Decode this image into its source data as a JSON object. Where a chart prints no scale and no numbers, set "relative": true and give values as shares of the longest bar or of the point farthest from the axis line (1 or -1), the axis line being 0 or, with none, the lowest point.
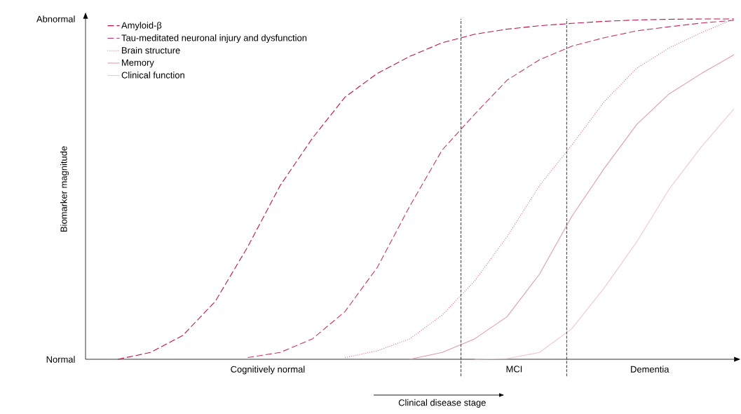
{
  "chart_data": {
    "type": "line",
    "relative": true,
    "xlabel": "Clinical disease stage",
    "ylabel": "Biomarker magnitude",
    "categories": [
      null,
      null,
      null,
      null,
      null,
      null,
      null,
      null,
      null,
      null,
      null,
      null,
      null,
      null,
      null,
      null,
      null,
      null,
      null,
      null,
      null
    ],
    "annotations": [
      "Normal",
      "Abnormal",
      "Cognitively normal",
      "MCI",
      "Dementia"
    ],
    "legend": "top left",
    "marker": "none",
    "series": [
      {
        "name": "Amyloid-β",
        "color": "#c0124f",
        "line_style": "dashed",
        "values": [
          null,
          0,
          0.02,
          0.07,
          0.17,
          0.33,
          0.51,
          0.65,
          0.77,
          0.84,
          0.89,
          0.93,
          0.955,
          0.97,
          0.98,
          0.987,
          0.993,
          0.997,
          0.999,
          1.0,
          1.0
        ]
      },
      {
        "name": "Tau-meditated neuronal injury and dysfunction",
        "color": "#c8336a",
        "line_style": "dashed",
        "values": [
          null,
          null,
          null,
          null,
          null,
          0.005,
          0.02,
          0.06,
          0.14,
          0.27,
          0.45,
          0.615,
          0.72,
          0.82,
          0.88,
          0.92,
          0.945,
          0.965,
          0.977,
          0.988,
          0.996
        ]
      },
      {
        "name": "Brain structure",
        "color": "#d0628a",
        "line_style": "dotted",
        "values": [
          null,
          null,
          null,
          null,
          null,
          null,
          null,
          null,
          0.005,
          0.025,
          0.06,
          0.13,
          0.23,
          0.36,
          0.51,
          0.63,
          0.757,
          0.855,
          0.915,
          0.96,
          1.0
        ]
      },
      {
        "name": "Memory",
        "color": "#e09ab3",
        "line_style": "solid",
        "values": [
          null,
          null,
          null,
          null,
          null,
          null,
          null,
          null,
          null,
          null,
          0,
          0.02,
          0.06,
          0.125,
          0.25,
          0.42,
          0.561,
          0.69,
          0.78,
          0.84,
          0.895
        ]
      },
      {
        "name": "Clinical function",
        "color": "#efc6d4",
        "line_style": "solid",
        "values": [
          null,
          null,
          null,
          null,
          null,
          null,
          null,
          null,
          null,
          null,
          null,
          null,
          0,
          0.002,
          0.02,
          0.09,
          0.21,
          0.345,
          0.5,
          0.625,
          0.736
        ]
      }
    ]
  }
}
